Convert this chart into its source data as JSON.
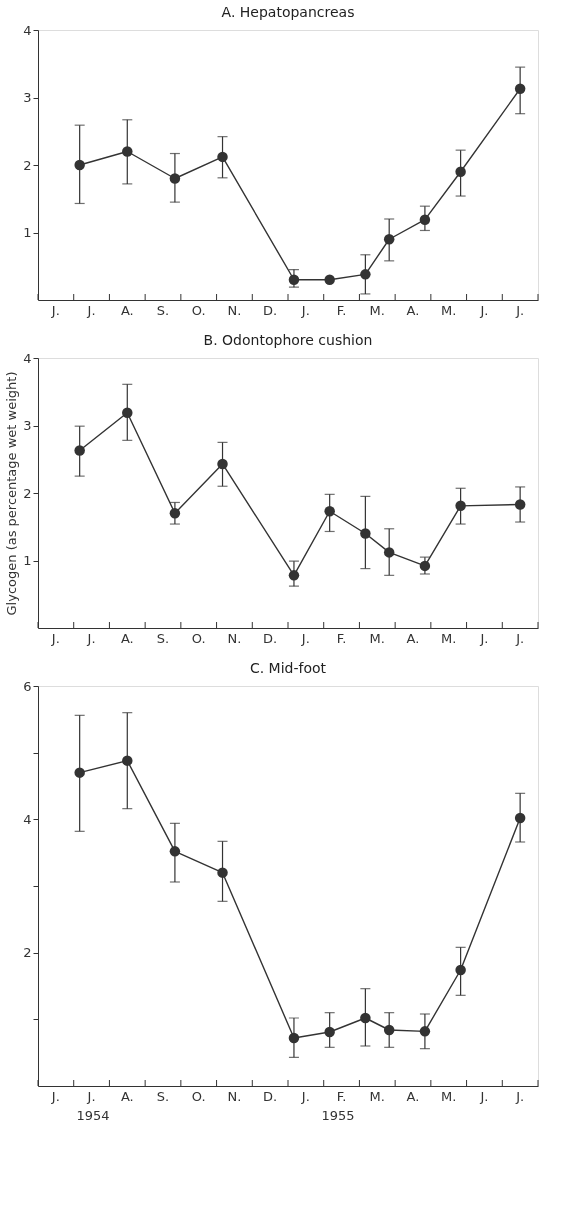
{
  "chart_data": [
    {
      "type": "line",
      "title": "A. Hepatopancreas",
      "marker": "circle",
      "grid": false,
      "ylim": [
        0,
        4
      ],
      "yticks": [
        1,
        2,
        3,
        4
      ],
      "categories": [
        null,
        "J.",
        null,
        null,
        "J.",
        null,
        null,
        "A.",
        null,
        null,
        "S.",
        null,
        null,
        "O.",
        null,
        null,
        "N.",
        null,
        null,
        "D.",
        null,
        null,
        "J.",
        null,
        null,
        "F.",
        null,
        null,
        "M.",
        null,
        null,
        "A.",
        null,
        null,
        "M.",
        null,
        null,
        "J.",
        null,
        null,
        "J.",
        null
      ],
      "series": [
        {
          "color": "#333333",
          "values": [
            null,
            null,
            null,
            2.0,
            null,
            null,
            null,
            2.2,
            null,
            null,
            null,
            1.8,
            null,
            null,
            null,
            2.12,
            null,
            null,
            null,
            null,
            null,
            0.3,
            null,
            null,
            0.3,
            null,
            null,
            0.38,
            null,
            0.9,
            null,
            null,
            1.19,
            null,
            null,
            1.9,
            null,
            null,
            null,
            null,
            3.13,
            null
          ],
          "errors": [
            null,
            null,
            null,
            [
              1.43,
              2.59
            ],
            null,
            null,
            null,
            [
              1.72,
              2.67
            ],
            null,
            null,
            null,
            [
              1.45,
              2.17
            ],
            null,
            null,
            null,
            [
              1.81,
              2.42
            ],
            null,
            null,
            null,
            null,
            null,
            [
              0.19,
              0.45
            ],
            null,
            null,
            null,
            null,
            null,
            [
              0.09,
              0.67
            ],
            null,
            [
              0.58,
              1.2
            ],
            null,
            null,
            [
              1.03,
              1.39
            ],
            null,
            null,
            [
              1.54,
              2.22
            ],
            null,
            null,
            null,
            null,
            [
              2.76,
              3.45
            ],
            null
          ]
        }
      ]
    },
    {
      "type": "line",
      "title": "B. Odontophore cushion",
      "ylabel": "Glycogen (as percentage wet weight)",
      "marker": "circle",
      "grid": false,
      "ylim": [
        0,
        4
      ],
      "yticks": [
        1,
        2,
        3,
        4
      ],
      "categories": [
        null,
        "J.",
        null,
        null,
        "J.",
        null,
        null,
        "A.",
        null,
        null,
        "S.",
        null,
        null,
        "O.",
        null,
        null,
        "N.",
        null,
        null,
        "D.",
        null,
        null,
        "J.",
        null,
        null,
        "F.",
        null,
        null,
        "M.",
        null,
        null,
        "A.",
        null,
        null,
        "M.",
        null,
        null,
        "J.",
        null,
        null,
        "J.",
        null
      ],
      "series": [
        {
          "color": "#333333",
          "values": [
            null,
            null,
            null,
            2.63,
            null,
            null,
            null,
            3.19,
            null,
            null,
            null,
            1.7,
            null,
            null,
            null,
            2.43,
            null,
            null,
            null,
            null,
            null,
            0.78,
            null,
            null,
            1.73,
            null,
            null,
            1.4,
            null,
            1.12,
            null,
            null,
            0.92,
            null,
            null,
            1.81,
            null,
            null,
            null,
            null,
            1.83,
            null
          ],
          "errors": [
            null,
            null,
            null,
            [
              2.25,
              2.99
            ],
            null,
            null,
            null,
            [
              2.78,
              3.61
            ],
            null,
            null,
            null,
            [
              1.54,
              1.86
            ],
            null,
            null,
            null,
            [
              2.1,
              2.75
            ],
            null,
            null,
            null,
            null,
            null,
            [
              0.62,
              0.99
            ],
            null,
            null,
            [
              1.43,
              1.98
            ],
            null,
            null,
            [
              0.88,
              1.95
            ],
            null,
            [
              0.78,
              1.47
            ],
            null,
            null,
            [
              0.8,
              1.05
            ],
            null,
            null,
            [
              1.54,
              2.07
            ],
            null,
            null,
            null,
            null,
            [
              1.57,
              2.09
            ],
            null
          ]
        }
      ]
    },
    {
      "type": "line",
      "title": "C. Mid-foot",
      "marker": "circle",
      "grid": false,
      "ylim": [
        0,
        6
      ],
      "yticks": [
        {
          "value": 1,
          "label": null
        },
        2,
        {
          "value": 3,
          "label": null
        },
        4,
        {
          "value": 5,
          "label": null
        },
        6
      ],
      "categories": [
        null,
        "J.",
        null,
        null,
        "J.",
        null,
        null,
        "A.",
        null,
        null,
        "S.",
        null,
        null,
        "O.",
        null,
        null,
        "N.",
        null,
        null,
        "D.",
        null,
        null,
        "J.",
        null,
        null,
        "F.",
        null,
        null,
        "M.",
        null,
        null,
        "A.",
        null,
        null,
        "M.",
        null,
        null,
        "J.",
        null,
        null,
        "J.",
        null
      ],
      "series": [
        {
          "color": "#333333",
          "values": [
            null,
            null,
            null,
            4.7,
            null,
            null,
            null,
            4.88,
            null,
            null,
            null,
            3.52,
            null,
            null,
            null,
            3.2,
            null,
            null,
            null,
            null,
            null,
            0.72,
            null,
            null,
            0.81,
            null,
            null,
            1.02,
            null,
            0.84,
            null,
            null,
            0.82,
            null,
            null,
            1.74,
            null,
            null,
            null,
            null,
            4.02,
            null
          ],
          "errors": [
            null,
            null,
            null,
            [
              3.82,
              5.56
            ],
            null,
            null,
            null,
            [
              4.16,
              5.6
            ],
            null,
            null,
            null,
            [
              3.06,
              3.94
            ],
            null,
            null,
            null,
            [
              2.77,
              3.67
            ],
            null,
            null,
            null,
            null,
            null,
            [
              0.43,
              1.02
            ],
            null,
            null,
            [
              0.58,
              1.1
            ],
            null,
            null,
            [
              0.6,
              1.46
            ],
            null,
            [
              0.58,
              1.1
            ],
            null,
            null,
            [
              0.56,
              1.08
            ],
            null,
            null,
            [
              1.36,
              2.08
            ],
            null,
            null,
            null,
            null,
            [
              3.66,
              4.39
            ],
            null
          ]
        }
      ],
      "annotations": [
        "1954",
        "1955"
      ]
    }
  ]
}
